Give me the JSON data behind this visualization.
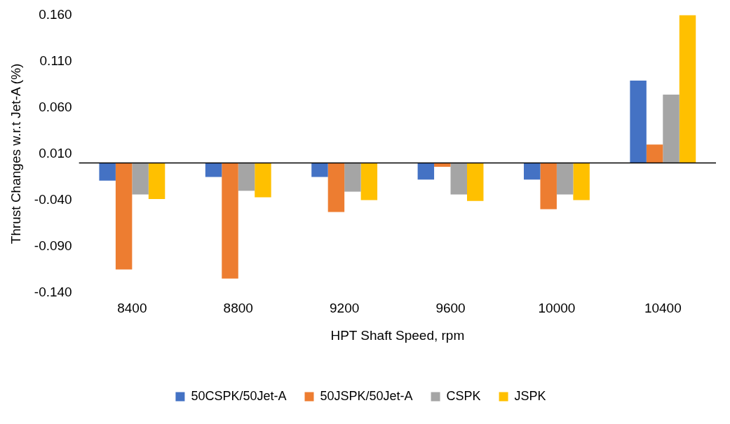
{
  "chart_data": {
    "type": "bar",
    "xlabel": "HPT Shaft Speed, rpm",
    "ylabel": "Thrust Changes w.r.t Jet-A (%)",
    "categories": [
      "8400",
      "8800",
      "9200",
      "9600",
      "10000",
      "10400"
    ],
    "series": [
      {
        "name": "50CSPK/50Jet-A",
        "color": "#4472c4",
        "values": [
          -0.019,
          -0.015,
          -0.015,
          -0.018,
          -0.018,
          0.089
        ]
      },
      {
        "name": "50JSPK/50Jet-A",
        "color": "#ed7d31",
        "values": [
          -0.115,
          -0.125,
          -0.053,
          -0.004,
          -0.05,
          0.02
        ]
      },
      {
        "name": "CSPK",
        "color": "#a5a5a5",
        "values": [
          -0.034,
          -0.03,
          -0.031,
          -0.034,
          -0.034,
          0.074
        ]
      },
      {
        "name": "JSPK",
        "color": "#ffc000",
        "values": [
          -0.039,
          -0.037,
          -0.04,
          -0.041,
          -0.04,
          0.16
        ]
      }
    ],
    "ylim": [
      -0.14,
      0.16
    ],
    "yticks": [
      {
        "value": -0.14,
        "label": "-0.140"
      },
      {
        "value": -0.09,
        "label": "-0.090"
      },
      {
        "value": -0.04,
        "label": "-0.040"
      },
      {
        "value": 0.01,
        "label": "0.010"
      },
      {
        "value": 0.06,
        "label": "0.060"
      },
      {
        "value": 0.11,
        "label": "0.110"
      },
      {
        "value": 0.16,
        "label": "0.160"
      }
    ],
    "grid": false,
    "legend": "bottom"
  }
}
